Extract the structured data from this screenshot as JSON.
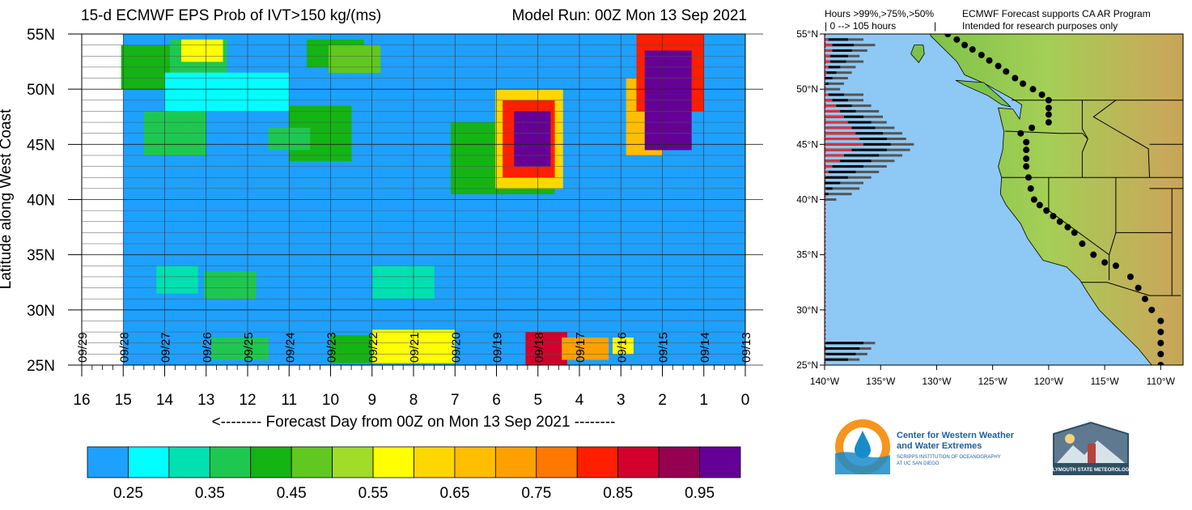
{
  "header": {
    "title_left": "15-d ECMWF EPS Prob of IVT>150 kg/(ms)",
    "title_right": "Model Run: 00Z Mon 13 Sep 2021"
  },
  "chart_data": [
    {
      "type": "heatmap",
      "title": "15-d ECMWF EPS Prob of IVT>150 kg/(ms)",
      "xlabel": "<-------- Forecast Day from 00Z on Mon 13 Sep 2021 --------",
      "ylabel": "Latitude along West Coast",
      "x_ticks": [
        "16",
        "15",
        "14",
        "13",
        "12",
        "11",
        "10",
        "9",
        "8",
        "7",
        "6",
        "5",
        "4",
        "3",
        "2",
        "1",
        "0"
      ],
      "y_ticks": [
        "55N",
        "50N",
        "45N",
        "40N",
        "35N",
        "30N",
        "25N"
      ],
      "xlim": [
        16,
        0
      ],
      "ylim": [
        25,
        55
      ],
      "date_labels": [
        "09/29",
        "09/28",
        "09/27",
        "09/26",
        "09/25",
        "09/24",
        "09/23",
        "09/22",
        "09/21",
        "09/20",
        "09/19",
        "09/18",
        "09/17",
        "09/16",
        "09/15",
        "09/14",
        "09/13"
      ],
      "background_value": 0.22,
      "regions": [
        {
          "x": [
            13.8,
            15.0
          ],
          "y": [
            50.0,
            54.0
          ],
          "value": 0.42
        },
        {
          "x": [
            12.5,
            13.8
          ],
          "y": [
            51.0,
            54.5
          ],
          "value": 0.38
        },
        {
          "x": [
            12.6,
            13.5
          ],
          "y": [
            52.5,
            54.2
          ],
          "value": 0.55
        },
        {
          "x": [
            9.2,
            10.5
          ],
          "y": [
            52.0,
            54.5
          ],
          "value": 0.42
        },
        {
          "x": [
            8.8,
            10.0
          ],
          "y": [
            51.5,
            54.0
          ],
          "value": 0.48
        },
        {
          "x": [
            13.0,
            14.5
          ],
          "y": [
            44.0,
            48.0
          ],
          "value": 0.35
        },
        {
          "x": [
            9.5,
            11.0
          ],
          "y": [
            43.5,
            48.5
          ],
          "value": 0.4
        },
        {
          "x": [
            10.5,
            11.5
          ],
          "y": [
            44.5,
            46.5
          ],
          "value": 0.35
        },
        {
          "x": [
            11.0,
            14.0
          ],
          "y": [
            48.0,
            51.5
          ],
          "value": 0.28
        },
        {
          "x": [
            13.2,
            14.2
          ],
          "y": [
            31.5,
            34.0
          ],
          "value": 0.3
        },
        {
          "x": [
            11.8,
            13.0
          ],
          "y": [
            31.0,
            33.5
          ],
          "value": 0.38
        },
        {
          "x": [
            7.5,
            9.0
          ],
          "y": [
            31.0,
            34.0
          ],
          "value": 0.34
        },
        {
          "x": [
            4.6,
            7.0
          ],
          "y": [
            40.5,
            47.0
          ],
          "value": 0.42
        },
        {
          "x": [
            4.4,
            6.0
          ],
          "y": [
            41.0,
            50.0
          ],
          "value": 0.62
        },
        {
          "x": [
            4.6,
            5.8
          ],
          "y": [
            42.0,
            49.0
          ],
          "value": 0.8
        },
        {
          "x": [
            4.7,
            5.5
          ],
          "y": [
            43.0,
            48.0
          ],
          "value": 0.97
        },
        {
          "x": [
            2.0,
            2.8
          ],
          "y": [
            44.0,
            51.0
          ],
          "value": 0.65
        },
        {
          "x": [
            1.0,
            2.6
          ],
          "y": [
            48.0,
            55.0
          ],
          "value": 0.82
        },
        {
          "x": [
            1.3,
            2.4
          ],
          "y": [
            44.5,
            53.5
          ],
          "value": 0.97
        },
        {
          "x": [
            7.0,
            9.0
          ],
          "y": [
            25.2,
            27.8
          ],
          "value": 0.55
        },
        {
          "x": [
            9.0,
            10.0
          ],
          "y": [
            25.2,
            27.5
          ],
          "value": 0.4
        },
        {
          "x": [
            4.3,
            5.3
          ],
          "y": [
            25.0,
            28.0
          ],
          "value": 0.85
        },
        {
          "x": [
            3.3,
            4.4
          ],
          "y": [
            25.5,
            27.5
          ],
          "value": 0.72
        },
        {
          "x": [
            2.7,
            3.2
          ],
          "y": [
            26.0,
            27.5
          ],
          "value": 0.55
        },
        {
          "x": [
            11.5,
            12.8
          ],
          "y": [
            25.5,
            27.5
          ],
          "value": 0.35
        }
      ]
    },
    {
      "type": "colorbar",
      "levels": [
        0.25,
        0.3,
        0.35,
        0.4,
        0.45,
        0.5,
        0.55,
        0.6,
        0.65,
        0.7,
        0.75,
        0.8,
        0.85,
        0.9,
        0.95
      ],
      "tick_labels": [
        "0.25",
        "0.35",
        "0.45",
        "0.55",
        "0.65",
        "0.75",
        "0.85",
        "0.95"
      ],
      "colors": [
        "#1ea0ff",
        "#00ffff",
        "#00e0b0",
        "#1ec850",
        "#14b414",
        "#60c81e",
        "#a0dc28",
        "#ffff00",
        "#ffd700",
        "#ffbe00",
        "#ffa000",
        "#ff7800",
        "#ff1e00",
        "#d2002d",
        "#960050",
        "#640096"
      ]
    },
    {
      "type": "map",
      "legend": {
        "hours": "Hours >99%,>75%,>50%",
        "range": "| 0 --> 105 hours",
        "bar": "|",
        "note1": "ECMWF Forecast supports CA AR Program",
        "note2": "Intended for research purposes only"
      },
      "lat_ticks": [
        "55°N",
        "50°N",
        "45°N",
        "40°N",
        "35°N",
        "30°N",
        "25°N"
      ],
      "lon_ticks": [
        "140°W",
        "135°W",
        "130°W",
        "125°W",
        "120°W",
        "115°W",
        "110°W"
      ],
      "lon_range": [
        -140,
        -108
      ],
      "lat_range": [
        25,
        55
      ],
      "bars": [
        {
          "lat": 54.5,
          "h50": 20,
          "h75": 12,
          "h99": 2
        },
        {
          "lat": 54.0,
          "h50": 26,
          "h75": 15,
          "h99": 4
        },
        {
          "lat": 53.5,
          "h50": 22,
          "h75": 14,
          "h99": 4
        },
        {
          "lat": 53.0,
          "h50": 18,
          "h75": 12,
          "h99": 3
        },
        {
          "lat": 52.5,
          "h50": 20,
          "h75": 11,
          "h99": 3
        },
        {
          "lat": 52.0,
          "h50": 16,
          "h75": 8,
          "h99": 2
        },
        {
          "lat": 51.5,
          "h50": 14,
          "h75": 6,
          "h99": 1
        },
        {
          "lat": 51.0,
          "h50": 12,
          "h75": 4,
          "h99": 0
        },
        {
          "lat": 50.5,
          "h50": 10,
          "h75": 2,
          "h99": 0
        },
        {
          "lat": 50.0,
          "h50": 8,
          "h75": 0,
          "h99": 0
        },
        {
          "lat": 49.5,
          "h50": 20,
          "h75": 10,
          "h99": 2
        },
        {
          "lat": 49.0,
          "h50": 20,
          "h75": 12,
          "h99": 4
        },
        {
          "lat": 48.5,
          "h50": 24,
          "h75": 14,
          "h99": 6
        },
        {
          "lat": 48.0,
          "h50": 28,
          "h75": 16,
          "h99": 8
        },
        {
          "lat": 47.5,
          "h50": 30,
          "h75": 20,
          "h99": 10
        },
        {
          "lat": 47.0,
          "h50": 32,
          "h75": 24,
          "h99": 12
        },
        {
          "lat": 46.5,
          "h50": 36,
          "h75": 26,
          "h99": 14
        },
        {
          "lat": 46.0,
          "h50": 40,
          "h75": 30,
          "h99": 16
        },
        {
          "lat": 45.5,
          "h50": 42,
          "h75": 32,
          "h99": 18
        },
        {
          "lat": 45.0,
          "h50": 46,
          "h75": 34,
          "h99": 20
        },
        {
          "lat": 44.5,
          "h50": 44,
          "h75": 32,
          "h99": 14
        },
        {
          "lat": 44.0,
          "h50": 40,
          "h75": 28,
          "h99": 10
        },
        {
          "lat": 43.5,
          "h50": 36,
          "h75": 24,
          "h99": 8
        },
        {
          "lat": 43.0,
          "h50": 32,
          "h75": 20,
          "h99": 4
        },
        {
          "lat": 42.5,
          "h50": 28,
          "h75": 16,
          "h99": 2
        },
        {
          "lat": 42.0,
          "h50": 24,
          "h75": 12,
          "h99": 0
        },
        {
          "lat": 41.5,
          "h50": 20,
          "h75": 8,
          "h99": 0
        },
        {
          "lat": 41.0,
          "h50": 18,
          "h75": 4,
          "h99": 0
        },
        {
          "lat": 40.5,
          "h50": 14,
          "h75": 2,
          "h99": 0
        },
        {
          "lat": 40.0,
          "h50": 6,
          "h75": 0,
          "h99": 0
        },
        {
          "lat": 27.0,
          "h50": 26,
          "h75": 20,
          "h99": 0
        },
        {
          "lat": 26.5,
          "h50": 24,
          "h75": 18,
          "h99": 0
        },
        {
          "lat": 26.0,
          "h50": 22,
          "h75": 16,
          "h99": 0
        },
        {
          "lat": 25.5,
          "h50": 18,
          "h75": 12,
          "h99": 0
        }
      ],
      "dots": [
        [
          -110,
          25
        ],
        [
          -110,
          26
        ],
        [
          -110,
          27
        ],
        [
          -110,
          28
        ],
        [
          -110,
          29
        ],
        [
          -110.8,
          30
        ],
        [
          -111.4,
          31
        ],
        [
          -112,
          32
        ],
        [
          -112.7,
          33
        ],
        [
          -114,
          34
        ],
        [
          -115,
          34.3
        ],
        [
          -116,
          35
        ],
        [
          -117,
          36
        ],
        [
          -117.7,
          37
        ],
        [
          -118.3,
          37.5
        ],
        [
          -119,
          38
        ],
        [
          -119.6,
          38.5
        ],
        [
          -120.2,
          39
        ],
        [
          -120.8,
          39.5
        ],
        [
          -121.3,
          40
        ],
        [
          -121.6,
          41
        ],
        [
          -121.8,
          42
        ],
        [
          -122,
          43
        ],
        [
          -122,
          43.7
        ],
        [
          -122,
          44.5
        ],
        [
          -122,
          45.2
        ],
        [
          -122.5,
          46
        ],
        [
          -121.5,
          46.5
        ],
        [
          -120,
          47
        ],
        [
          -120,
          47.7
        ],
        [
          -120,
          48.3
        ],
        [
          -120,
          49
        ],
        [
          -120.6,
          49.5
        ],
        [
          -121.4,
          50
        ],
        [
          -122.3,
          50.5
        ],
        [
          -123,
          51
        ],
        [
          -123.8,
          51.6
        ],
        [
          -124.5,
          52.1
        ],
        [
          -125.3,
          52.6
        ],
        [
          -126,
          53.1
        ],
        [
          -126.8,
          53.6
        ],
        [
          -127.5,
          54
        ],
        [
          -128.2,
          54.5
        ],
        [
          -129,
          55
        ]
      ]
    }
  ],
  "logos": {
    "cw3e_line1": "Center for Western Weather",
    "cw3e_line2": "and Water Extremes",
    "cw3e_line3": "SCRIPPS INSTITUTION OF OCEANOGRAPHY",
    "cw3e_line4": "AT UC SAN DIEGO",
    "psu": "PLYMOUTH STATE METEOROLOGY"
  }
}
